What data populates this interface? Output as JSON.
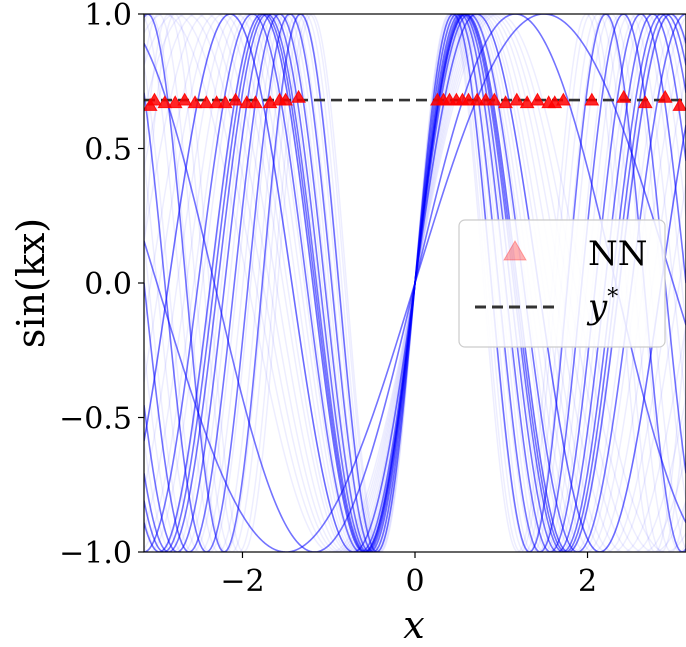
{
  "chart_data": {
    "type": "line",
    "xlabel": "x",
    "ylabel": "sin(kx)",
    "xlim": [
      -3.14159,
      3.14159
    ],
    "ylim": [
      -1.0,
      1.0
    ],
    "x_ticks": [
      -2,
      0,
      2
    ],
    "x_tick_labels": [
      "−2",
      "0",
      "2"
    ],
    "y_ticks": [
      -1.0,
      -0.5,
      0.0,
      0.5,
      1.0
    ],
    "y_tick_labels": [
      "−1.0",
      "−0.5",
      "0.0",
      "0.5",
      "1.0"
    ],
    "grid": false,
    "legend_position": "center-right",
    "curve_family": {
      "function": "sin(kx)",
      "color": "#0000ff",
      "k_values_faint": [
        1.62,
        1.7,
        1.78,
        1.86,
        1.95,
        2.05,
        2.12,
        2.2,
        2.28,
        2.37,
        2.45,
        2.55,
        2.66,
        2.8,
        2.92,
        3.05,
        3.15,
        3.3,
        3.45,
        3.58,
        3.7,
        3.85,
        3.95
      ],
      "k_values_strong": [
        1.05,
        1.35,
        2.2,
        2.5,
        2.65,
        2.7,
        2.75,
        2.85,
        3.0,
        3.25,
        3.55
      ]
    },
    "target_line": {
      "name": "y*",
      "value": 0.68,
      "color": "#333333",
      "style": "dashed"
    },
    "nn_markers": {
      "name": "NN",
      "color": "#ff0000",
      "points": [
        [
          -3.07,
          0.66
        ],
        [
          -3.02,
          0.68
        ],
        [
          -2.9,
          0.67
        ],
        [
          -2.78,
          0.67
        ],
        [
          -2.67,
          0.68
        ],
        [
          -2.55,
          0.67
        ],
        [
          -2.42,
          0.67
        ],
        [
          -2.3,
          0.67
        ],
        [
          -2.2,
          0.67
        ],
        [
          -2.08,
          0.68
        ],
        [
          -1.95,
          0.67
        ],
        [
          -1.85,
          0.67
        ],
        [
          -1.68,
          0.67
        ],
        [
          -1.57,
          0.68
        ],
        [
          -1.5,
          0.68
        ],
        [
          -1.35,
          0.69
        ],
        [
          0.26,
          0.68
        ],
        [
          0.33,
          0.68
        ],
        [
          0.4,
          0.68
        ],
        [
          0.48,
          0.68
        ],
        [
          0.55,
          0.68
        ],
        [
          0.62,
          0.68
        ],
        [
          0.72,
          0.68
        ],
        [
          0.82,
          0.68
        ],
        [
          0.92,
          0.68
        ],
        [
          1.05,
          0.67
        ],
        [
          1.18,
          0.68
        ],
        [
          1.3,
          0.67
        ],
        [
          1.42,
          0.68
        ],
        [
          1.55,
          0.67
        ],
        [
          1.62,
          0.67
        ],
        [
          1.72,
          0.68
        ],
        [
          2.05,
          0.68
        ],
        [
          2.42,
          0.69
        ],
        [
          2.67,
          0.67
        ],
        [
          2.9,
          0.69
        ],
        [
          3.07,
          0.66
        ]
      ]
    },
    "legend": [
      {
        "label": "NN",
        "marker": "triangle",
        "color": "#ff0000"
      },
      {
        "label": "y*",
        "marker": "dashed-line",
        "color": "#333333"
      }
    ]
  }
}
